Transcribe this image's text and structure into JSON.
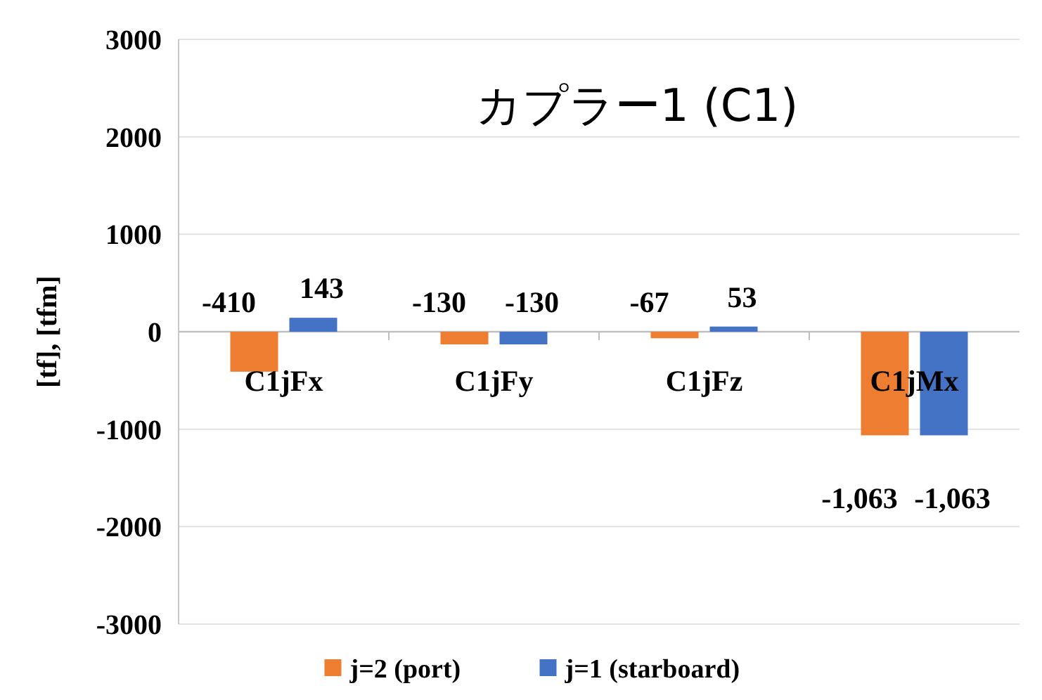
{
  "chart_data": {
    "type": "bar",
    "title": "カプラー1 (C1)",
    "ylabel": "[tf], [tfm]",
    "categories": [
      "C1jFx",
      "C1jFy",
      "C1jFz",
      "C1jMx"
    ],
    "series": [
      {
        "name": "j=2 (port)",
        "color": "#ed7d31",
        "values": [
          -410,
          -130,
          -67,
          -1063
        ],
        "value_labels": [
          "-410",
          "-130",
          "-67",
          "-1,063"
        ]
      },
      {
        "name": "j=1 (starboard)",
        "color": "#4472c4",
        "values": [
          143,
          -130,
          53,
          -1063
        ],
        "value_labels": [
          "143",
          "-130",
          "53",
          "-1,063"
        ]
      }
    ],
    "ylim": [
      -3000,
      3000
    ],
    "yticks": [
      -3000,
      -2000,
      -1000,
      0,
      1000,
      2000,
      3000
    ],
    "grid": "y",
    "legend": "bottom"
  }
}
